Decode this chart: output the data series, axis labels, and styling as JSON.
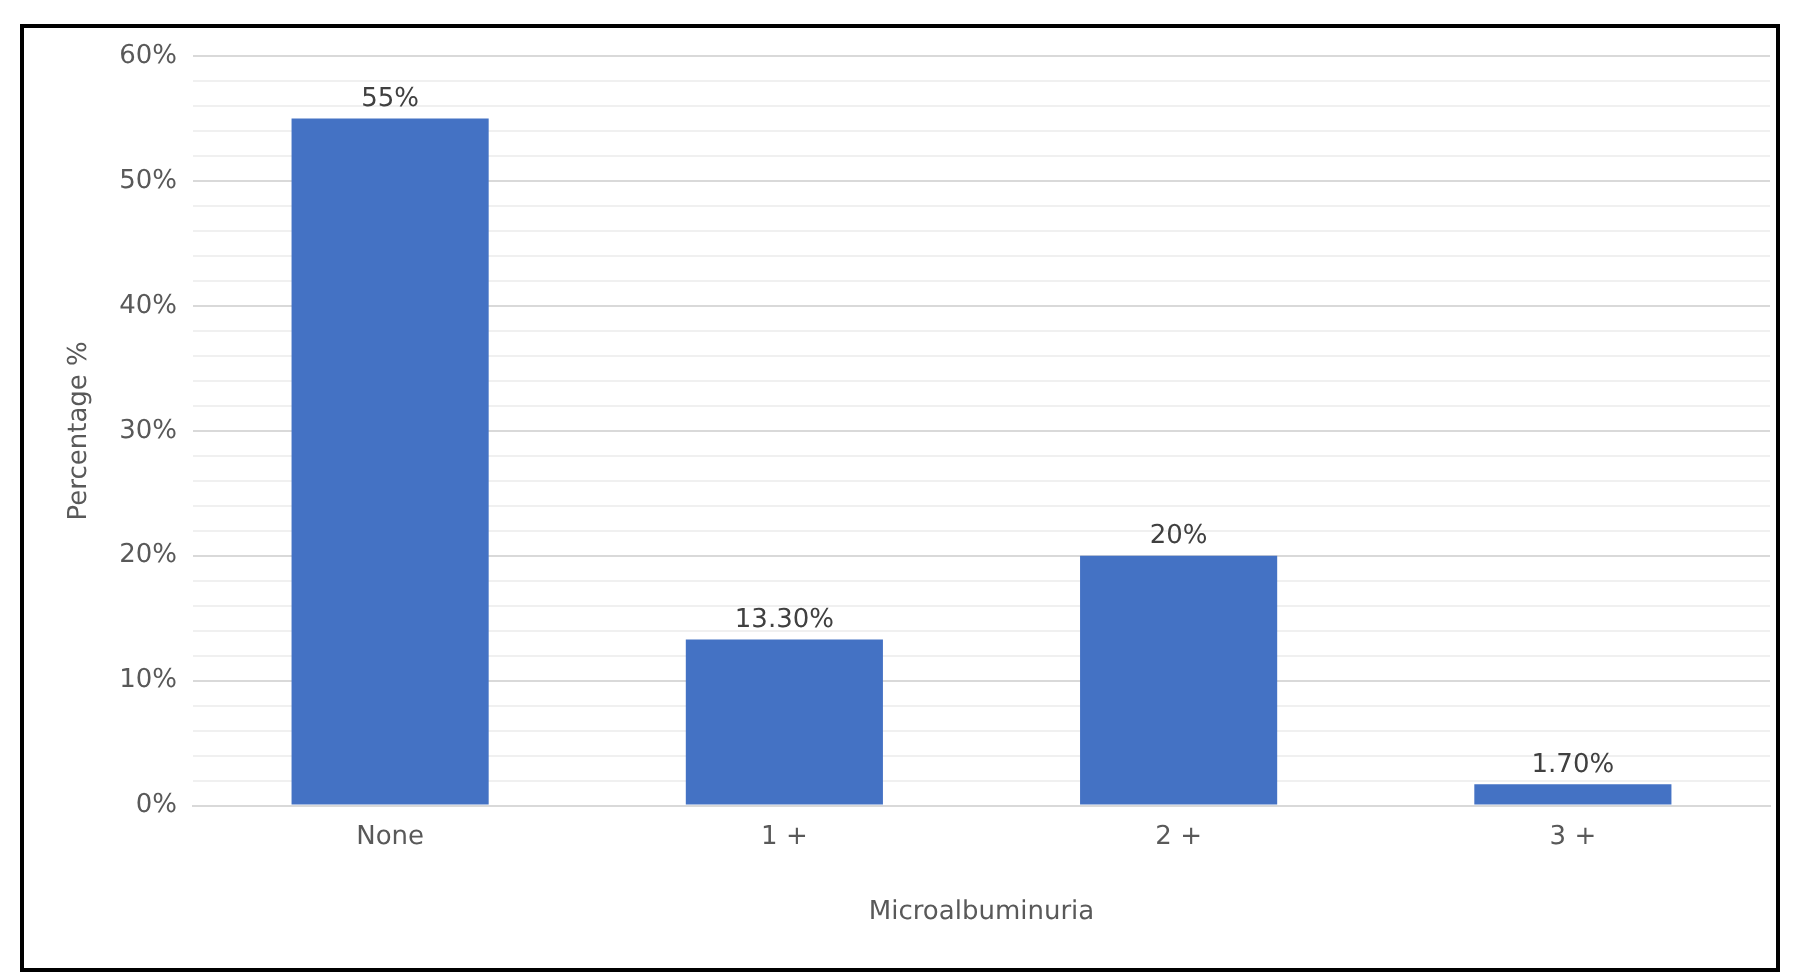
{
  "chart_data": {
    "type": "bar",
    "xlabel": "Microalbuminuria",
    "ylabel": "Percentage %",
    "categories": [
      "None",
      "1 +",
      "2 +",
      "3 +"
    ],
    "values": [
      55,
      13.3,
      20,
      1.7
    ],
    "value_labels": [
      "55%",
      "13.30%",
      "20%",
      "1.70%"
    ],
    "color": "#4472c4",
    "ylim": [
      0,
      60
    ],
    "yticks": [
      {
        "value": 0,
        "label": "0%"
      },
      {
        "value": 2,
        "label": null
      },
      {
        "value": 4,
        "label": null
      },
      {
        "value": 6,
        "label": null
      },
      {
        "value": 8,
        "label": null
      },
      {
        "value": 10,
        "label": "10%"
      },
      {
        "value": 12,
        "label": null
      },
      {
        "value": 14,
        "label": null
      },
      {
        "value": 16,
        "label": null
      },
      {
        "value": 18,
        "label": null
      },
      {
        "value": 20,
        "label": "20%"
      },
      {
        "value": 22,
        "label": null
      },
      {
        "value": 24,
        "label": null
      },
      {
        "value": 26,
        "label": null
      },
      {
        "value": 28,
        "label": null
      },
      {
        "value": 30,
        "label": "30%"
      },
      {
        "value": 32,
        "label": null
      },
      {
        "value": 34,
        "label": null
      },
      {
        "value": 36,
        "label": null
      },
      {
        "value": 38,
        "label": null
      },
      {
        "value": 40,
        "label": "40%"
      },
      {
        "value": 42,
        "label": null
      },
      {
        "value": 44,
        "label": null
      },
      {
        "value": 46,
        "label": null
      },
      {
        "value": 48,
        "label": null
      },
      {
        "value": 50,
        "label": "50%"
      },
      {
        "value": 52,
        "label": null
      },
      {
        "value": 54,
        "label": null
      },
      {
        "value": 56,
        "label": null
      },
      {
        "value": 58,
        "label": null
      },
      {
        "value": 60,
        "label": "60%"
      }
    ],
    "grid": "y",
    "legend": false
  }
}
